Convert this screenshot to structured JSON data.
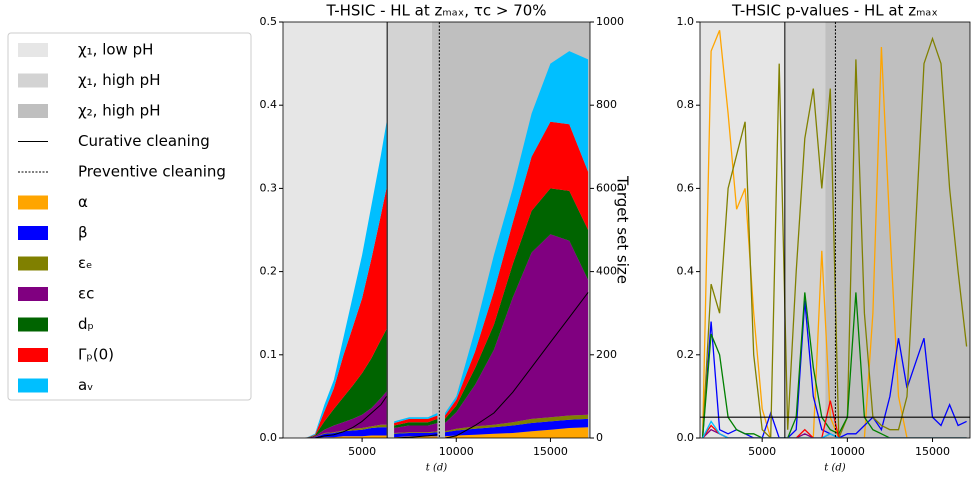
{
  "chart_data": [
    {
      "type": "area",
      "title": "T-HSIC - HL at zₘₐₓ, τc > 70%",
      "xlabel": "t (d)",
      "y2label": "Target set size",
      "xlim": [
        800,
        17100
      ],
      "xticks": [
        5000,
        10000,
        15000
      ],
      "ylim": [
        0,
        0.5
      ],
      "yticks": [
        {
          "value": 0,
          "label": "0.0"
        },
        0.1,
        0.2,
        0.3,
        0.4,
        0.5
      ],
      "y2lim": [
        0,
        1000
      ],
      "y2ticks": [
        0,
        200,
        400,
        600,
        800,
        1000
      ],
      "regions": [
        {
          "name": "χ₁, low pH",
          "from": 0,
          "to": 6330,
          "color": "#e6e6e6"
        },
        {
          "name": "χ₁, high pH",
          "from": 6330,
          "to": 8700,
          "color": "#d3d3d3"
        },
        {
          "name": "χ₂, high pH",
          "from": 8700,
          "to": 17500,
          "color": "#bfbfbf"
        }
      ],
      "events": [
        {
          "name": "Curative cleaning",
          "x": 6330,
          "style": "solid"
        },
        {
          "name": "Preventive cleaning",
          "x": 9100,
          "style": "dashed"
        }
      ],
      "x": [
        2000,
        2500,
        3000,
        3500,
        4000,
        4500,
        5000,
        5500,
        6000,
        6300,
        6500,
        6700,
        7500,
        8500,
        9000,
        9200,
        9400,
        10000,
        11000,
        12000,
        13000,
        14000,
        15000,
        16000,
        17000
      ],
      "series": [
        {
          "name": "α",
          "color": "#ffa500",
          "values": [
            0,
            0,
            0.001,
            0.001,
            0.002,
            0.002,
            0.002,
            0.003,
            0.003,
            0.003,
            null,
            0.001,
            0.002,
            0.002,
            0.002,
            null,
            0.002,
            0.003,
            0.004,
            0.005,
            0.006,
            0.008,
            0.01,
            0.012,
            0.013
          ]
        },
        {
          "name": "β",
          "color": "#0000ff",
          "values": [
            0,
            0.001,
            0.004,
            0.005,
            0.006,
            0.007,
            0.008,
            0.009,
            0.01,
            0.01,
            null,
            0.004,
            0.004,
            0.004,
            0.005,
            null,
            0.005,
            0.006,
            0.007,
            0.008,
            0.009,
            0.01,
            0.01,
            0.01,
            0.01
          ]
        },
        {
          "name": "εₑ",
          "color": "#808000",
          "values": [
            0,
            0,
            0.001,
            0.001,
            0.001,
            0.002,
            0.002,
            0.002,
            0.003,
            0.003,
            null,
            0.001,
            0.001,
            0.001,
            0.001,
            null,
            0.001,
            0.002,
            0.003,
            0.003,
            0.004,
            0.005,
            0.005,
            0.005,
            0.005
          ]
        },
        {
          "name": "εc",
          "color": "#800080",
          "values": [
            0,
            0.001,
            0.004,
            0.008,
            0.01,
            0.012,
            0.016,
            0.022,
            0.032,
            0.04,
            null,
            0.006,
            0.008,
            0.008,
            0.01,
            null,
            0.01,
            0.02,
            0.05,
            0.09,
            0.15,
            0.2,
            0.22,
            0.21,
            0.162
          ]
        },
        {
          "name": "dₚ",
          "color": "#006400",
          "values": [
            0,
            0.001,
            0.01,
            0.02,
            0.03,
            0.04,
            0.05,
            0.06,
            0.07,
            0.075,
            null,
            0.003,
            0.004,
            0.004,
            0.005,
            null,
            0.005,
            0.008,
            0.02,
            0.03,
            0.04,
            0.05,
            0.055,
            0.06,
            0.06
          ]
        },
        {
          "name": "Γₚ(0)",
          "color": "#ff0000",
          "values": [
            0,
            0.001,
            0.012,
            0.025,
            0.05,
            0.07,
            0.09,
            0.12,
            0.15,
            0.17,
            null,
            0.003,
            0.004,
            0.004,
            0.004,
            null,
            0.004,
            0.007,
            0.02,
            0.04,
            0.05,
            0.065,
            0.08,
            0.08,
            0.07
          ]
        },
        {
          "name": "aᵥ",
          "color": "#00bfff",
          "values": [
            0,
            0.001,
            0.008,
            0.01,
            0.021,
            0.037,
            0.052,
            0.064,
            0.072,
            0.079,
            null,
            0.002,
            0.002,
            0.002,
            0.003,
            null,
            0.003,
            0.004,
            0.026,
            0.044,
            0.041,
            0.052,
            0.07,
            0.088,
            0.135
          ]
        },
        {
          "axis": "y2",
          "color": "#000000",
          "values": [
            0,
            0,
            5,
            8,
            15,
            25,
            40,
            60,
            80,
            100,
            null,
            0,
            2,
            5,
            8,
            null,
            0,
            5,
            30,
            60,
            110,
            170,
            230,
            290,
            350
          ]
        }
      ]
    },
    {
      "type": "line",
      "title": "T-HSIC p-values - HL at zₘₐₓ",
      "xlabel": "t (d)",
      "xlim": [
        1350,
        17200
      ],
      "xticks": [
        5000,
        10000,
        15000
      ],
      "ylim": [
        0,
        1
      ],
      "yticks": [
        {
          "value": 0,
          "label": "0.0"
        },
        {
          "value": 0.2,
          "label": "0.2"
        },
        {
          "value": 0.4,
          "label": "0.4"
        },
        {
          "value": 0.6,
          "label": "0.6"
        },
        {
          "value": 0.8,
          "label": "0.8"
        },
        {
          "value": 1,
          "label": "1.0"
        }
      ],
      "regions": [
        {
          "from": 0,
          "to": 6330,
          "color": "#e6e6e6"
        },
        {
          "from": 6330,
          "to": 8700,
          "color": "#d3d3d3"
        },
        {
          "from": 8700,
          "to": 17500,
          "color": "#bfbfbf"
        }
      ],
      "events": [
        {
          "x": 6330,
          "style": "solid"
        },
        {
          "x": 9300,
          "style": "dashed"
        }
      ],
      "hline": 0.05,
      "x": [
        1500,
        2000,
        2500,
        3000,
        3500,
        4000,
        4500,
        5000,
        5500,
        6000,
        6500,
        7000,
        7500,
        8000,
        8500,
        9000,
        9500,
        10000,
        10500,
        11000,
        11500,
        12000,
        12500,
        13000,
        13500,
        14000,
        14500,
        15000,
        15500,
        16000,
        16500,
        17000
      ],
      "series": [
        {
          "color": "#ffa500",
          "values": [
            0,
            0.93,
            0.98,
            0.78,
            0.55,
            0.6,
            0.3,
            0.07,
            0,
            0,
            0,
            0,
            0,
            0,
            0.45,
            0.05,
            0,
            0,
            0,
            0,
            0.3,
            0.94,
            0.5,
            0.1,
            0,
            0,
            0,
            0,
            0,
            0,
            0,
            0
          ]
        },
        {
          "color": "#0000ff",
          "values": [
            0,
            0.28,
            0.02,
            0.01,
            0.02,
            0.01,
            0,
            0,
            0.06,
            0,
            0,
            0.02,
            0.33,
            0.1,
            0.02,
            0.01,
            0,
            0.01,
            0.01,
            0.03,
            0.05,
            0.02,
            0.1,
            0.24,
            0.12,
            0.18,
            0.24,
            0.05,
            0.03,
            0.08,
            0.03,
            0.04
          ]
        },
        {
          "color": "#808000",
          "values": [
            0,
            0.37,
            0.3,
            0.6,
            0.68,
            0.76,
            0.2,
            0.02,
            0,
            0.9,
            0.02,
            0.4,
            0.72,
            0.84,
            0.6,
            0.84,
            0,
            0.05,
            0.91,
            0.3,
            0.05,
            0.03,
            0.02,
            0.02,
            0.1,
            0.5,
            0.9,
            0.96,
            0.9,
            0.6,
            0.4,
            0.22
          ]
        },
        {
          "color": "#800080",
          "values": [
            0,
            0.02,
            0.01,
            0,
            0,
            0,
            0,
            0,
            0,
            0,
            0,
            0,
            0.01,
            0,
            0,
            0.01,
            0,
            0,
            0,
            0,
            0,
            0,
            0,
            0,
            0,
            0,
            0,
            0,
            0,
            0,
            0,
            0
          ]
        },
        {
          "color": "#008000",
          "values": [
            0,
            0.25,
            0.2,
            0.05,
            0.02,
            0.01,
            0.01,
            0,
            0,
            0,
            0,
            0.05,
            0.35,
            0.17,
            0.05,
            0.02,
            0.01,
            0.05,
            0.35,
            0.05,
            0.02,
            0.01,
            0,
            0,
            0,
            0,
            0,
            0,
            0,
            0,
            0,
            0
          ]
        },
        {
          "color": "#ff0000",
          "values": [
            0,
            0.03,
            0.01,
            0,
            0,
            0,
            0,
            0,
            0,
            0,
            0,
            0,
            0.02,
            0,
            0,
            0.09,
            0,
            0,
            0,
            0,
            0,
            0,
            0,
            0,
            0,
            0,
            0,
            0,
            0,
            0,
            0,
            0
          ]
        },
        {
          "color": "#00bfff",
          "values": [
            0,
            0.04,
            0.01,
            0,
            0,
            0,
            0,
            0,
            0,
            0,
            0,
            0,
            0,
            0,
            0,
            0.01,
            0,
            0,
            0,
            0,
            0,
            0,
            0,
            0,
            0,
            0,
            0,
            0,
            0,
            0,
            0,
            0
          ]
        }
      ]
    }
  ]
}
